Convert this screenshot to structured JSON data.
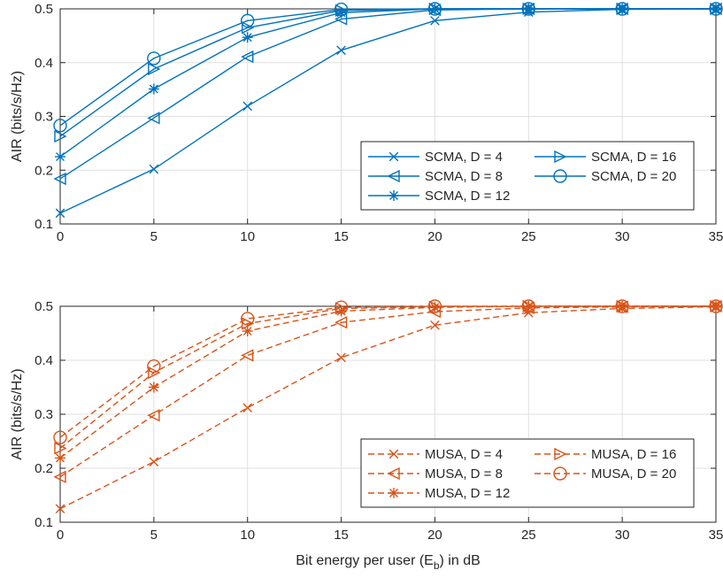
{
  "chart_data": [
    {
      "type": "line",
      "title": "",
      "xlabel": "",
      "ylabel": "AIR (bits/s/Hz)",
      "xlim": [
        0,
        35
      ],
      "ylim": [
        0.1,
        0.5
      ],
      "x_ticks": [
        "0",
        "5",
        "10",
        "15",
        "20",
        "25",
        "30",
        "35"
      ],
      "y_ticks": [
        "0.1",
        "0.2",
        "0.3",
        "0.4",
        "0.5"
      ],
      "grid": true,
      "legend_placement": "bottom-right",
      "line_style": "solid",
      "color": "#0072BD",
      "x": [
        0,
        5,
        10,
        15,
        20,
        25,
        30,
        35
      ],
      "series": [
        {
          "name": "SCMA, D = 4",
          "marker": "x",
          "values": [
            0.12,
            0.202,
            0.319,
            0.423,
            0.478,
            0.494,
            0.499,
            0.5
          ]
        },
        {
          "name": "SCMA, D = 8",
          "marker": "triangle-left",
          "values": [
            0.184,
            0.297,
            0.411,
            0.481,
            0.498,
            0.5,
            0.5,
            0.5
          ]
        },
        {
          "name": "SCMA, D = 12",
          "marker": "asterisk",
          "values": [
            0.225,
            0.351,
            0.447,
            0.493,
            0.5,
            0.5,
            0.5,
            0.5
          ]
        },
        {
          "name": "SCMA, D = 16",
          "marker": "triangle-right",
          "values": [
            0.263,
            0.388,
            0.465,
            0.497,
            0.5,
            0.5,
            0.5,
            0.5
          ]
        },
        {
          "name": "SCMA, D = 20",
          "marker": "circle",
          "values": [
            0.283,
            0.408,
            0.478,
            0.499,
            0.5,
            0.5,
            0.5,
            0.5
          ]
        }
      ]
    },
    {
      "type": "line",
      "title": "",
      "xlabel": "Bit energy per user (E_b) in dB",
      "ylabel": "AIR (bits/s/Hz)",
      "xlim": [
        0,
        35
      ],
      "ylim": [
        0.1,
        0.5
      ],
      "x_ticks": [
        "0",
        "5",
        "10",
        "15",
        "20",
        "25",
        "30",
        "35"
      ],
      "y_ticks": [
        "0.1",
        "0.2",
        "0.3",
        "0.4",
        "0.5"
      ],
      "grid": true,
      "legend_placement": "bottom-right",
      "line_style": "dashed",
      "color": "#D95319",
      "x": [
        0,
        5,
        10,
        15,
        20,
        25,
        30,
        35
      ],
      "series": [
        {
          "name": "MUSA, D = 4",
          "marker": "x",
          "values": [
            0.125,
            0.212,
            0.312,
            0.405,
            0.465,
            0.488,
            0.496,
            0.499
          ]
        },
        {
          "name": "MUSA, D = 8",
          "marker": "triangle-left",
          "values": [
            0.184,
            0.298,
            0.409,
            0.47,
            0.49,
            0.497,
            0.499,
            0.5
          ]
        },
        {
          "name": "MUSA, D = 12",
          "marker": "asterisk",
          "values": [
            0.219,
            0.35,
            0.454,
            0.491,
            0.498,
            0.5,
            0.5,
            0.5
          ]
        },
        {
          "name": "MUSA, D = 16",
          "marker": "triangle-right",
          "values": [
            0.237,
            0.377,
            0.468,
            0.496,
            0.499,
            0.5,
            0.5,
            0.5
          ]
        },
        {
          "name": "MUSA, D = 20",
          "marker": "circle",
          "values": [
            0.257,
            0.389,
            0.477,
            0.498,
            0.5,
            0.5,
            0.5,
            0.5
          ]
        }
      ]
    }
  ]
}
